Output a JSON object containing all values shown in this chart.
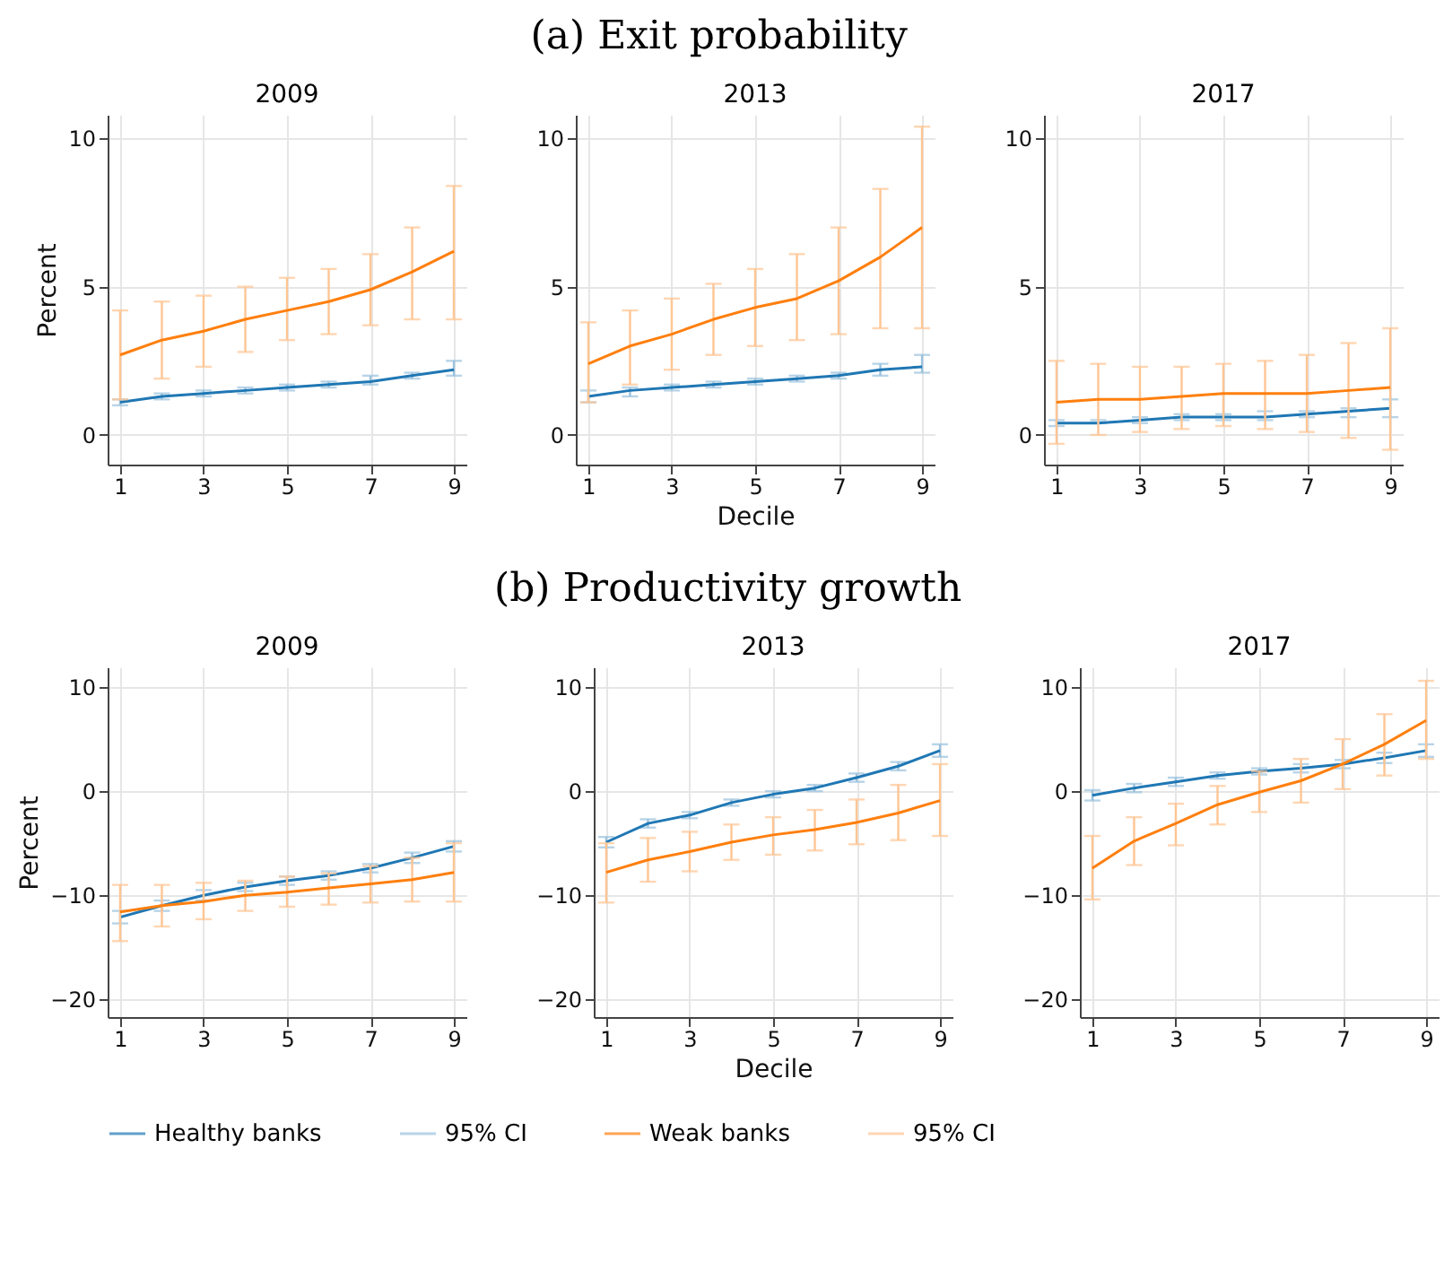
{
  "chart_data": [
    {
      "type": "line",
      "title": "2009",
      "ylabel": "Percent",
      "legend": "bottom",
      "annotations": [
        "(a) Exit probability"
      ],
      "x": [
        1,
        2,
        3,
        4,
        5,
        6,
        7,
        8,
        9
      ],
      "xlim": [
        0.7,
        9.3
      ],
      "xticks": [
        1,
        3,
        5,
        7,
        9
      ],
      "ylim": [
        -1,
        10.8
      ],
      "yticks": [
        0,
        5,
        10
      ],
      "grid": true,
      "series": [
        {
          "name": "Healthy banks",
          "color": "#1f77b4",
          "values": [
            1.1,
            1.3,
            1.4,
            1.5,
            1.6,
            1.7,
            1.8,
            2.0,
            2.2
          ],
          "errors": [
            [
              1.0,
              1.2
            ],
            [
              1.2,
              1.4
            ],
            [
              1.3,
              1.5
            ],
            [
              1.4,
              1.6
            ],
            [
              1.5,
              1.7
            ],
            [
              1.6,
              1.8
            ],
            [
              1.7,
              2.0
            ],
            [
              1.9,
              2.1
            ],
            [
              2.0,
              2.5
            ]
          ]
        },
        {
          "name": "Weak banks",
          "color": "#ff7f0e",
          "values": [
            2.7,
            3.2,
            3.5,
            3.9,
            4.2,
            4.5,
            4.9,
            5.5,
            6.2
          ],
          "errors": [
            [
              1.2,
              4.2
            ],
            [
              1.9,
              4.5
            ],
            [
              2.3,
              4.7
            ],
            [
              2.8,
              5.0
            ],
            [
              3.2,
              5.3
            ],
            [
              3.4,
              5.6
            ],
            [
              3.7,
              6.1
            ],
            [
              3.9,
              7.0
            ],
            [
              3.9,
              8.4
            ]
          ]
        }
      ]
    },
    {
      "type": "line",
      "title": "2013",
      "xlabel": "Decile",
      "x": [
        1,
        2,
        3,
        4,
        5,
        6,
        7,
        8,
        9
      ],
      "xlim": [
        0.7,
        9.3
      ],
      "xticks": [
        1,
        3,
        5,
        7,
        9
      ],
      "ylim": [
        -1,
        10.8
      ],
      "yticks": [
        0,
        5,
        10
      ],
      "grid": true,
      "series": [
        {
          "color": "#1f77b4",
          "values": [
            1.3,
            1.5,
            1.6,
            1.7,
            1.8,
            1.9,
            2.0,
            2.2,
            2.3
          ],
          "errors": [
            [
              1.1,
              1.5
            ],
            [
              1.3,
              1.6
            ],
            [
              1.5,
              1.7
            ],
            [
              1.6,
              1.8
            ],
            [
              1.7,
              1.9
            ],
            [
              1.8,
              2.0
            ],
            [
              1.9,
              2.1
            ],
            [
              2.0,
              2.4
            ],
            [
              2.1,
              2.7
            ]
          ]
        },
        {
          "color": "#ff7f0e",
          "values": [
            2.4,
            3.0,
            3.4,
            3.9,
            4.3,
            4.6,
            5.2,
            6.0,
            7.0
          ],
          "errors": [
            [
              1.1,
              3.8
            ],
            [
              1.7,
              4.2
            ],
            [
              2.2,
              4.6
            ],
            [
              2.7,
              5.1
            ],
            [
              3.0,
              5.6
            ],
            [
              3.2,
              6.1
            ],
            [
              3.4,
              7.0
            ],
            [
              3.6,
              8.3
            ],
            [
              3.6,
              10.4
            ]
          ]
        }
      ]
    },
    {
      "type": "line",
      "title": "2017",
      "x": [
        1,
        2,
        3,
        4,
        5,
        6,
        7,
        8,
        9
      ],
      "xlim": [
        0.7,
        9.3
      ],
      "xticks": [
        1,
        3,
        5,
        7,
        9
      ],
      "ylim": [
        -1,
        10.8
      ],
      "yticks": [
        0,
        5,
        10
      ],
      "grid": true,
      "series": [
        {
          "color": "#1f77b4",
          "values": [
            0.4,
            0.4,
            0.5,
            0.6,
            0.6,
            0.6,
            0.7,
            0.8,
            0.9
          ],
          "errors": [
            [
              0.3,
              0.5
            ],
            [
              0.4,
              0.5
            ],
            [
              0.4,
              0.6
            ],
            [
              0.5,
              0.7
            ],
            [
              0.5,
              0.7
            ],
            [
              0.5,
              0.8
            ],
            [
              0.6,
              0.8
            ],
            [
              0.6,
              0.9
            ],
            [
              0.6,
              1.2
            ]
          ]
        },
        {
          "color": "#ff7f0e",
          "values": [
            1.1,
            1.2,
            1.2,
            1.3,
            1.4,
            1.4,
            1.4,
            1.5,
            1.6
          ],
          "errors": [
            [
              -0.3,
              2.5
            ],
            [
              0.0,
              2.4
            ],
            [
              0.1,
              2.3
            ],
            [
              0.2,
              2.3
            ],
            [
              0.3,
              2.4
            ],
            [
              0.2,
              2.5
            ],
            [
              0.1,
              2.7
            ],
            [
              -0.1,
              3.1
            ],
            [
              -0.5,
              3.6
            ]
          ]
        }
      ]
    },
    {
      "type": "line",
      "title": "2009",
      "ylabel": "Percent",
      "annotations": [
        "(b) Productivity growth"
      ],
      "x": [
        1,
        2,
        3,
        4,
        5,
        6,
        7,
        8,
        9
      ],
      "xlim": [
        0.7,
        9.3
      ],
      "xticks": [
        1,
        3,
        5,
        7,
        9
      ],
      "ylim": [
        -21.7,
        11.9
      ],
      "yticks": [
        -20,
        -10,
        0,
        10
      ],
      "grid": true,
      "series": [
        {
          "color": "#1f77b4",
          "values": [
            -12.1,
            -11.0,
            -10.0,
            -9.2,
            -8.6,
            -8.1,
            -7.4,
            -6.4,
            -5.3
          ],
          "errors": [
            0.6,
            0.5,
            0.5,
            0.4,
            0.4,
            0.4,
            0.4,
            0.5,
            0.5
          ]
        },
        {
          "color": "#ff7f0e",
          "values": [
            -11.6,
            -11.0,
            -10.6,
            -10.0,
            -9.7,
            -9.3,
            -8.9,
            -8.5,
            -7.8
          ],
          "errors": [
            [
              -14.4,
              -9.0
            ],
            [
              -13.0,
              -9.0
            ],
            [
              -12.3,
              -8.8
            ],
            [
              -11.5,
              -8.6
            ],
            [
              -11.1,
              -8.2
            ],
            [
              -10.9,
              -7.9
            ],
            [
              -10.7,
              -7.2
            ],
            [
              -10.6,
              -6.4
            ],
            [
              -10.6,
              -5.0
            ]
          ]
        }
      ]
    },
    {
      "type": "line",
      "title": "2013",
      "xlabel": "Decile",
      "x": [
        1,
        2,
        3,
        4,
        5,
        6,
        7,
        8,
        9
      ],
      "xlim": [
        0.7,
        9.3
      ],
      "xticks": [
        1,
        3,
        5,
        7,
        9
      ],
      "ylim": [
        -21.7,
        11.9
      ],
      "yticks": [
        -20,
        -10,
        0,
        10
      ],
      "grid": true,
      "series": [
        {
          "color": "#1f77b4",
          "values": [
            -4.9,
            -3.1,
            -2.3,
            -1.1,
            -0.3,
            0.3,
            1.3,
            2.4,
            3.9
          ],
          "errors": [
            0.5,
            0.4,
            0.3,
            0.3,
            0.3,
            0.3,
            0.4,
            0.4,
            0.6
          ]
        },
        {
          "color": "#ff7f0e",
          "values": [
            -7.8,
            -6.6,
            -5.8,
            -4.9,
            -4.2,
            -3.7,
            -3.0,
            -2.1,
            -0.9
          ],
          "errors": [
            [
              -10.7,
              -5.0
            ],
            [
              -8.7,
              -4.5
            ],
            [
              -7.7,
              -3.9
            ],
            [
              -6.6,
              -3.2
            ],
            [
              -6.1,
              -2.5
            ],
            [
              -5.7,
              -1.8
            ],
            [
              -5.1,
              -0.8
            ],
            [
              -4.7,
              0.6
            ],
            [
              -4.3,
              2.6
            ]
          ]
        }
      ]
    },
    {
      "type": "line",
      "title": "2017",
      "annotations": [
        "95% CI",
        "95% CI"
      ],
      "x": [
        1,
        2,
        3,
        4,
        5,
        6,
        7,
        8,
        9
      ],
      "xlim": [
        0.7,
        9.3
      ],
      "xticks": [
        1,
        3,
        5,
        7,
        9
      ],
      "ylim": [
        -21.7,
        11.9
      ],
      "yticks": [
        -20,
        -10,
        0,
        10
      ],
      "grid": true,
      "series": [
        {
          "color": "#1f77b4",
          "values": [
            -0.4,
            0.3,
            0.9,
            1.5,
            1.9,
            2.2,
            2.6,
            3.2,
            3.9
          ],
          "errors": [
            0.5,
            0.4,
            0.4,
            0.3,
            0.3,
            0.4,
            0.4,
            0.5,
            0.6
          ]
        },
        {
          "color": "#ff7f0e",
          "values": [
            -7.4,
            -4.8,
            -3.1,
            -1.3,
            -0.1,
            1.0,
            2.6,
            4.5,
            6.8
          ],
          "errors": [
            [
              -10.4,
              -4.3
            ],
            [
              -7.1,
              -2.5
            ],
            [
              -5.2,
              -1.2
            ],
            [
              -3.2,
              0.5
            ],
            [
              -2.0,
              1.9
            ],
            [
              -1.1,
              3.1
            ],
            [
              0.2,
              5.0
            ],
            [
              1.5,
              7.4
            ],
            [
              3.1,
              10.6
            ]
          ]
        }
      ]
    }
  ]
}
